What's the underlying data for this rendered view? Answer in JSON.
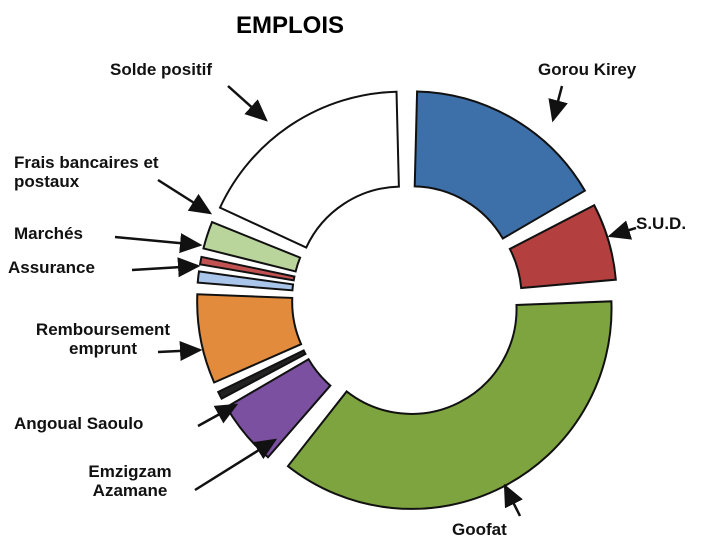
{
  "chart_data": {
    "type": "pie",
    "donut": true,
    "title": "EMPLOIS",
    "categories": [
      "Gorou Kirey",
      "S.U.D.",
      "Goofat",
      "Emzigzam Azamane",
      "Angoual Saoulo",
      "Remboursement emprunt",
      "Assurance",
      "Marchés",
      "Frais bancaires et postaux",
      "Solde positif"
    ],
    "values": [
      17,
      7,
      37,
      6,
      1,
      8,
      1.5,
      1,
      3,
      18.5
    ],
    "colors": [
      "#3d6fa9",
      "#b3403f",
      "#7ea43f",
      "#7b50a0",
      "#222222",
      "#e28b3d",
      "#a9c5ea",
      "#c25252",
      "#bad59b",
      "#ffffff"
    ]
  }
}
